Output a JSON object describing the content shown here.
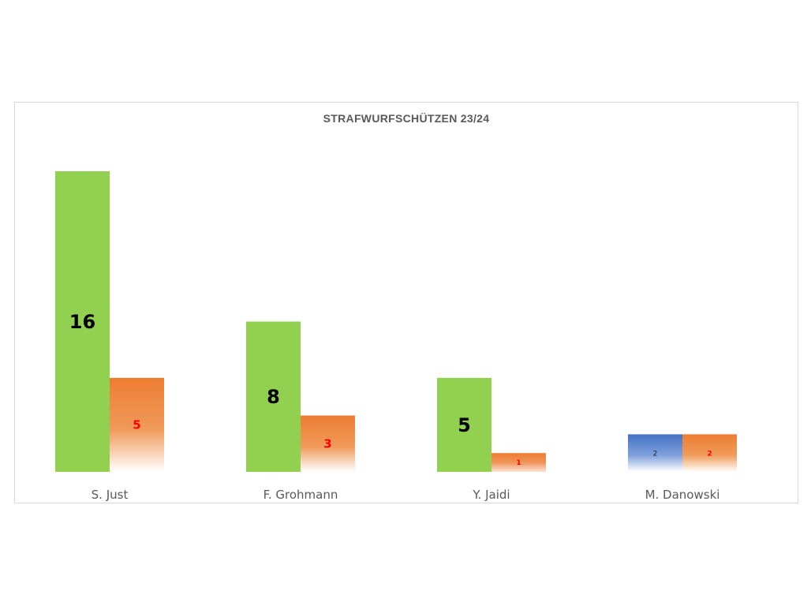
{
  "chart_data": {
    "type": "bar",
    "title": "STRAFWURFSCHÜTZEN 23/24",
    "xlabel": "",
    "ylabel": "",
    "categories": [
      "S. Just",
      "F. Grohmann",
      "Y. Jaidi",
      "M. Danowski"
    ],
    "ylim": [
      0,
      16
    ],
    "grid": false,
    "legend": "none",
    "series": [
      {
        "values": [
          16,
          8,
          5,
          2
        ],
        "colors": [
          "#92d050",
          "#92d050",
          "#92d050",
          "#4472c4"
        ],
        "label_color": "#000000"
      },
      {
        "values": [
          5,
          3,
          1,
          2
        ],
        "colors": [
          "#ed7d31",
          "#ed7d31",
          "#ed7d31",
          "#ed7d31"
        ],
        "label_color": "#ff0000"
      }
    ]
  }
}
